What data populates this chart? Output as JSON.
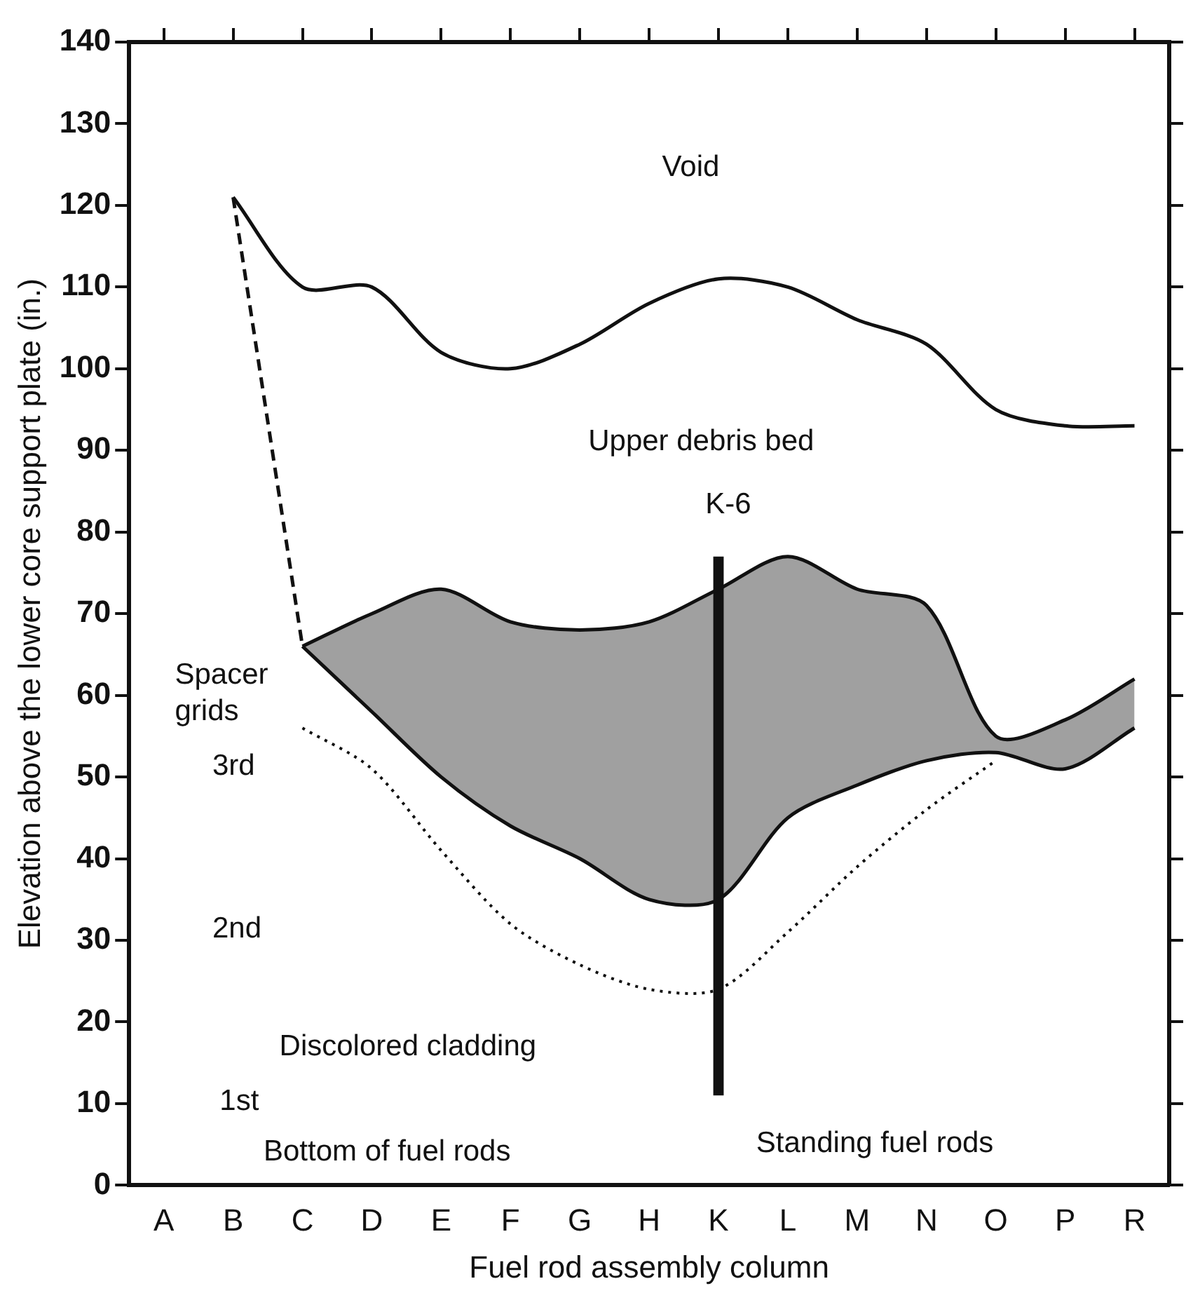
{
  "chart_data": {
    "type": "line",
    "xlabel": "Fuel rod assembly column",
    "ylabel": "Elevation above the lower core support plate (in.)",
    "categories": [
      "A",
      "B",
      "C",
      "D",
      "E",
      "F",
      "G",
      "H",
      "K",
      "L",
      "M",
      "N",
      "O",
      "P",
      "R"
    ],
    "ylim": [
      0,
      140
    ],
    "yticks": [
      0,
      10,
      20,
      30,
      40,
      50,
      60,
      70,
      80,
      90,
      100,
      110,
      120,
      130,
      140
    ],
    "grid": false,
    "legend": false,
    "marker": "none",
    "series": [
      {
        "color": "#111111",
        "line_style": "solid",
        "values": [
          null,
          121,
          110,
          110,
          102,
          100,
          103,
          108,
          111,
          110,
          106,
          103,
          95,
          93,
          93
        ]
      },
      {
        "color": "#111111",
        "line_style": "dashed",
        "values": [
          null,
          121,
          66,
          null,
          null,
          null,
          null,
          null,
          null,
          null,
          null,
          null,
          null,
          null,
          null
        ]
      },
      {
        "color": "#111111",
        "line_style": "solid",
        "values": [
          null,
          null,
          66,
          70,
          73,
          69,
          68,
          69,
          73,
          77,
          73,
          71,
          55,
          57,
          62
        ],
        "lower": [
          null,
          null,
          66,
          58,
          50,
          44,
          40,
          35,
          35,
          45,
          49,
          52,
          53,
          51,
          56
        ],
        "upper": [
          null,
          null,
          66,
          70,
          73,
          69,
          68,
          69,
          73,
          77,
          73,
          71,
          55,
          57,
          62
        ]
      },
      {
        "color": "#111111",
        "line_style": "solid",
        "values": [
          null,
          null,
          66,
          58,
          50,
          44,
          40,
          35,
          35,
          45,
          49,
          52,
          53,
          51,
          56
        ]
      },
      {
        "color": "#111111",
        "line_style": "dotted",
        "values": [
          null,
          null,
          56,
          51,
          41,
          32,
          27,
          24,
          24,
          31,
          39,
          46,
          52,
          null,
          null
        ]
      },
      {
        "type": "bar",
        "color": "#111111",
        "values": [
          null,
          null,
          null,
          null,
          null,
          null,
          null,
          null,
          66,
          null,
          null,
          null,
          null,
          null,
          null
        ],
        "base": [
          null,
          null,
          null,
          null,
          null,
          null,
          null,
          null,
          11,
          null,
          null,
          null,
          null,
          null,
          null
        ]
      }
    ],
    "annotations": [
      "Void",
      "Upper debris bed",
      "K-6",
      "Spacer grids",
      "3rd",
      "2nd",
      "1st",
      "Discolored cladding",
      "Bottom of fuel rods",
      "Standing fuel rods"
    ]
  }
}
